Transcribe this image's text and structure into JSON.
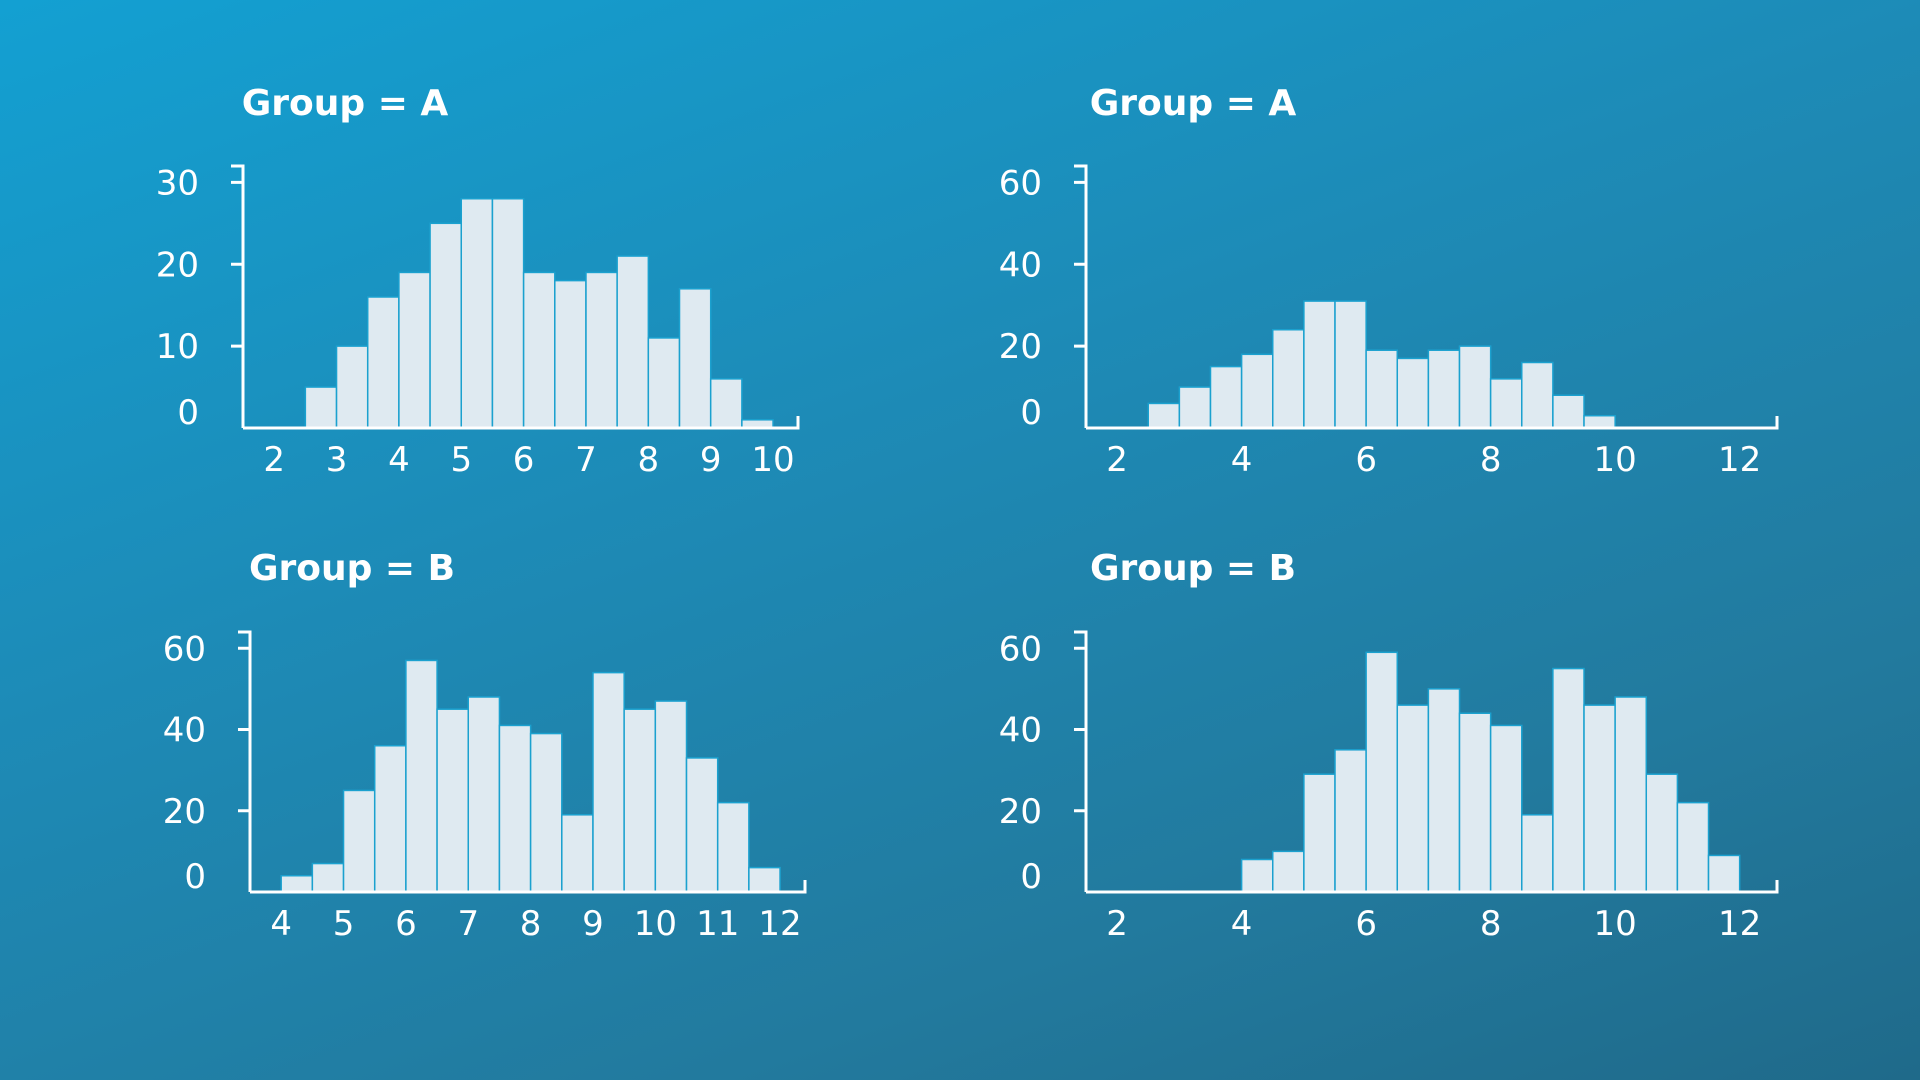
{
  "chart_data": [
    {
      "type": "bar",
      "title": "Group = A",
      "bins": [
        2.5,
        3.0,
        3.5,
        4.0,
        4.5,
        5.0,
        5.5,
        6.0,
        6.5,
        7.0,
        7.5,
        8.0,
        8.5,
        9.0,
        9.5
      ],
      "bin_width": 0.5,
      "values": [
        5,
        10,
        16,
        19,
        25,
        28,
        28,
        19,
        18,
        19,
        21,
        11,
        17,
        6,
        1
      ],
      "xlim": [
        1.5,
        10.4
      ],
      "ylim": [
        0,
        32
      ],
      "xticks": [
        2,
        3,
        4,
        5,
        6,
        7,
        8,
        9,
        10
      ],
      "yticks": [
        0,
        10,
        20,
        30
      ]
    },
    {
      "type": "bar",
      "title": "Group = A",
      "bins": [
        2.5,
        3.0,
        3.5,
        4.0,
        4.5,
        5.0,
        5.5,
        6.0,
        6.5,
        7.0,
        7.5,
        8.0,
        8.5,
        9.0,
        9.5
      ],
      "bin_width": 0.5,
      "values": [
        6,
        10,
        15,
        18,
        24,
        31,
        31,
        19,
        17,
        19,
        20,
        12,
        16,
        8,
        3
      ],
      "xlim": [
        1.5,
        12.6
      ],
      "ylim": [
        0,
        64
      ],
      "xticks": [
        2,
        4,
        6,
        8,
        10,
        12
      ],
      "yticks": [
        0,
        20,
        40,
        60
      ]
    },
    {
      "type": "bar",
      "title": "Group = B",
      "bins": [
        4.0,
        4.5,
        5.0,
        5.5,
        6.0,
        6.5,
        7.0,
        7.5,
        8.0,
        8.5,
        9.0,
        9.5,
        10.0,
        10.5,
        11.0,
        11.5
      ],
      "bin_width": 0.5,
      "values": [
        4,
        7,
        25,
        36,
        57,
        45,
        48,
        41,
        39,
        19,
        54,
        45,
        47,
        33,
        22,
        6
      ],
      "xlim": [
        3.5,
        12.4
      ],
      "ylim": [
        0,
        64
      ],
      "xticks": [
        4,
        5,
        6,
        7,
        8,
        9,
        10,
        11,
        12
      ],
      "yticks": [
        0,
        20,
        40,
        60
      ]
    },
    {
      "type": "bar",
      "title": "Group = B",
      "bins": [
        4.0,
        4.5,
        5.0,
        5.5,
        6.0,
        6.5,
        7.0,
        7.5,
        8.0,
        8.5,
        9.0,
        9.5,
        10.0,
        10.5,
        11.0,
        11.5
      ],
      "bin_width": 0.5,
      "values": [
        8,
        10,
        29,
        35,
        59,
        46,
        50,
        44,
        41,
        19,
        55,
        46,
        48,
        29,
        22,
        9
      ],
      "xlim": [
        1.5,
        12.6
      ],
      "ylim": [
        0,
        64
      ],
      "xticks": [
        2,
        4,
        6,
        8,
        10,
        12
      ],
      "yticks": [
        0,
        20,
        40,
        60
      ]
    }
  ]
}
